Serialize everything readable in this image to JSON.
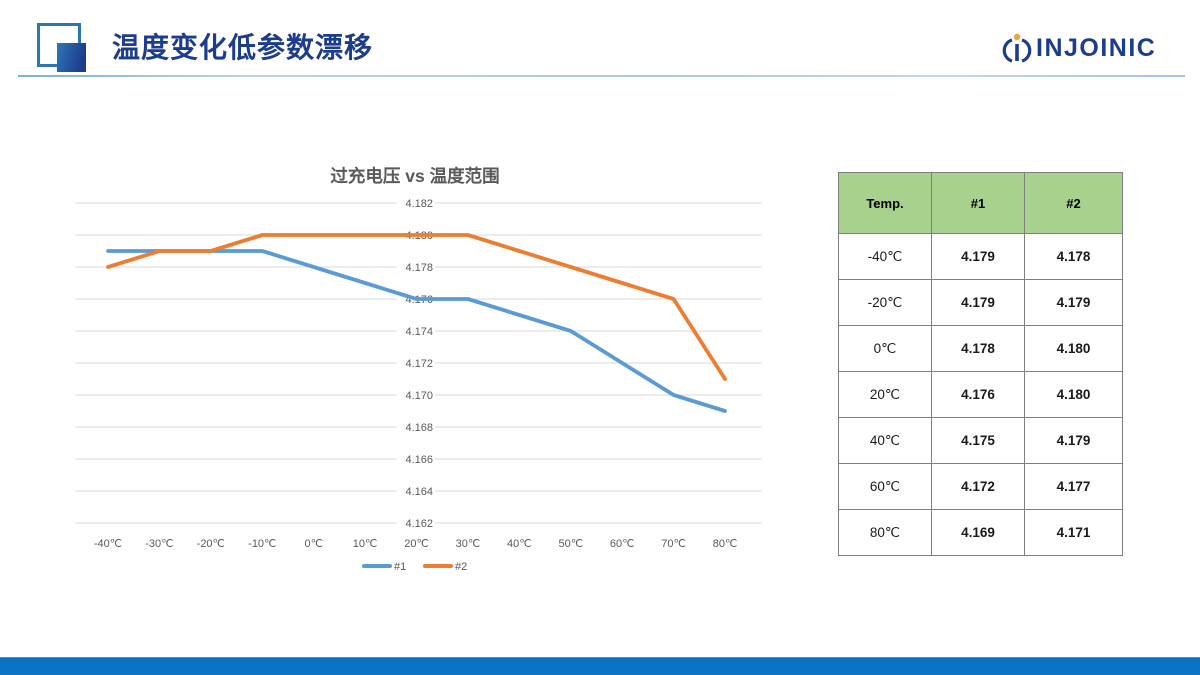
{
  "header": {
    "title": "温度变化低参数漂移",
    "logo_text": "INJOINIC"
  },
  "colors": {
    "brand_navy": "#1c3c8c",
    "accent_blue": "#2e75b6",
    "footer_blue": "#0c72c4",
    "table_header_bg": "#a9d18e",
    "series1_blue": "#5B9BD5",
    "series2_orange": "#ED7D31",
    "logo_dot_orange": "#f2a33c"
  },
  "chart_data": {
    "type": "line",
    "title": "过充电压 vs 温度范围",
    "xlabel": "",
    "ylabel": "",
    "categories": [
      "-40℃",
      "-30℃",
      "-20℃",
      "-10℃",
      "0℃",
      "10℃",
      "20℃",
      "30℃",
      "40℃",
      "50℃",
      "60℃",
      "70℃",
      "80℃"
    ],
    "series": [
      {
        "name": "#1",
        "color": "#5B9BD5",
        "values": [
          4.179,
          4.179,
          4.179,
          4.179,
          4.178,
          4.177,
          4.176,
          4.176,
          4.175,
          4.174,
          4.172,
          4.17,
          4.169
        ]
      },
      {
        "name": "#2",
        "color": "#ED7D31",
        "values": [
          4.178,
          4.179,
          4.179,
          4.18,
          4.18,
          4.18,
          4.18,
          4.18,
          4.179,
          4.178,
          4.177,
          4.176,
          4.171
        ]
      }
    ],
    "ylim": [
      4.162,
      4.182
    ],
    "y_tick_step": 0.002,
    "y_tick_labels": [
      "4.182",
      "4.180",
      "4.178",
      "4.176",
      "4.174",
      "4.172",
      "4.170",
      "4.168",
      "4.166",
      "4.164",
      "4.162"
    ],
    "grid": true,
    "gridline_color": "#d9d9d9",
    "label_color": "#595959",
    "title_color": "#595959",
    "y_axis_label_position": "center-of-plot",
    "legend_position": "bottom-center"
  },
  "table": {
    "headers": [
      "Temp.",
      "#1",
      "#2"
    ],
    "rows": [
      [
        "-40℃",
        "4.179",
        "4.178"
      ],
      [
        "-20℃",
        "4.179",
        "4.179"
      ],
      [
        "0℃",
        "4.178",
        "4.180"
      ],
      [
        "20℃",
        "4.176",
        "4.180"
      ],
      [
        "40℃",
        "4.175",
        "4.179"
      ],
      [
        "60℃",
        "4.172",
        "4.177"
      ],
      [
        "80℃",
        "4.169",
        "4.171"
      ]
    ]
  }
}
